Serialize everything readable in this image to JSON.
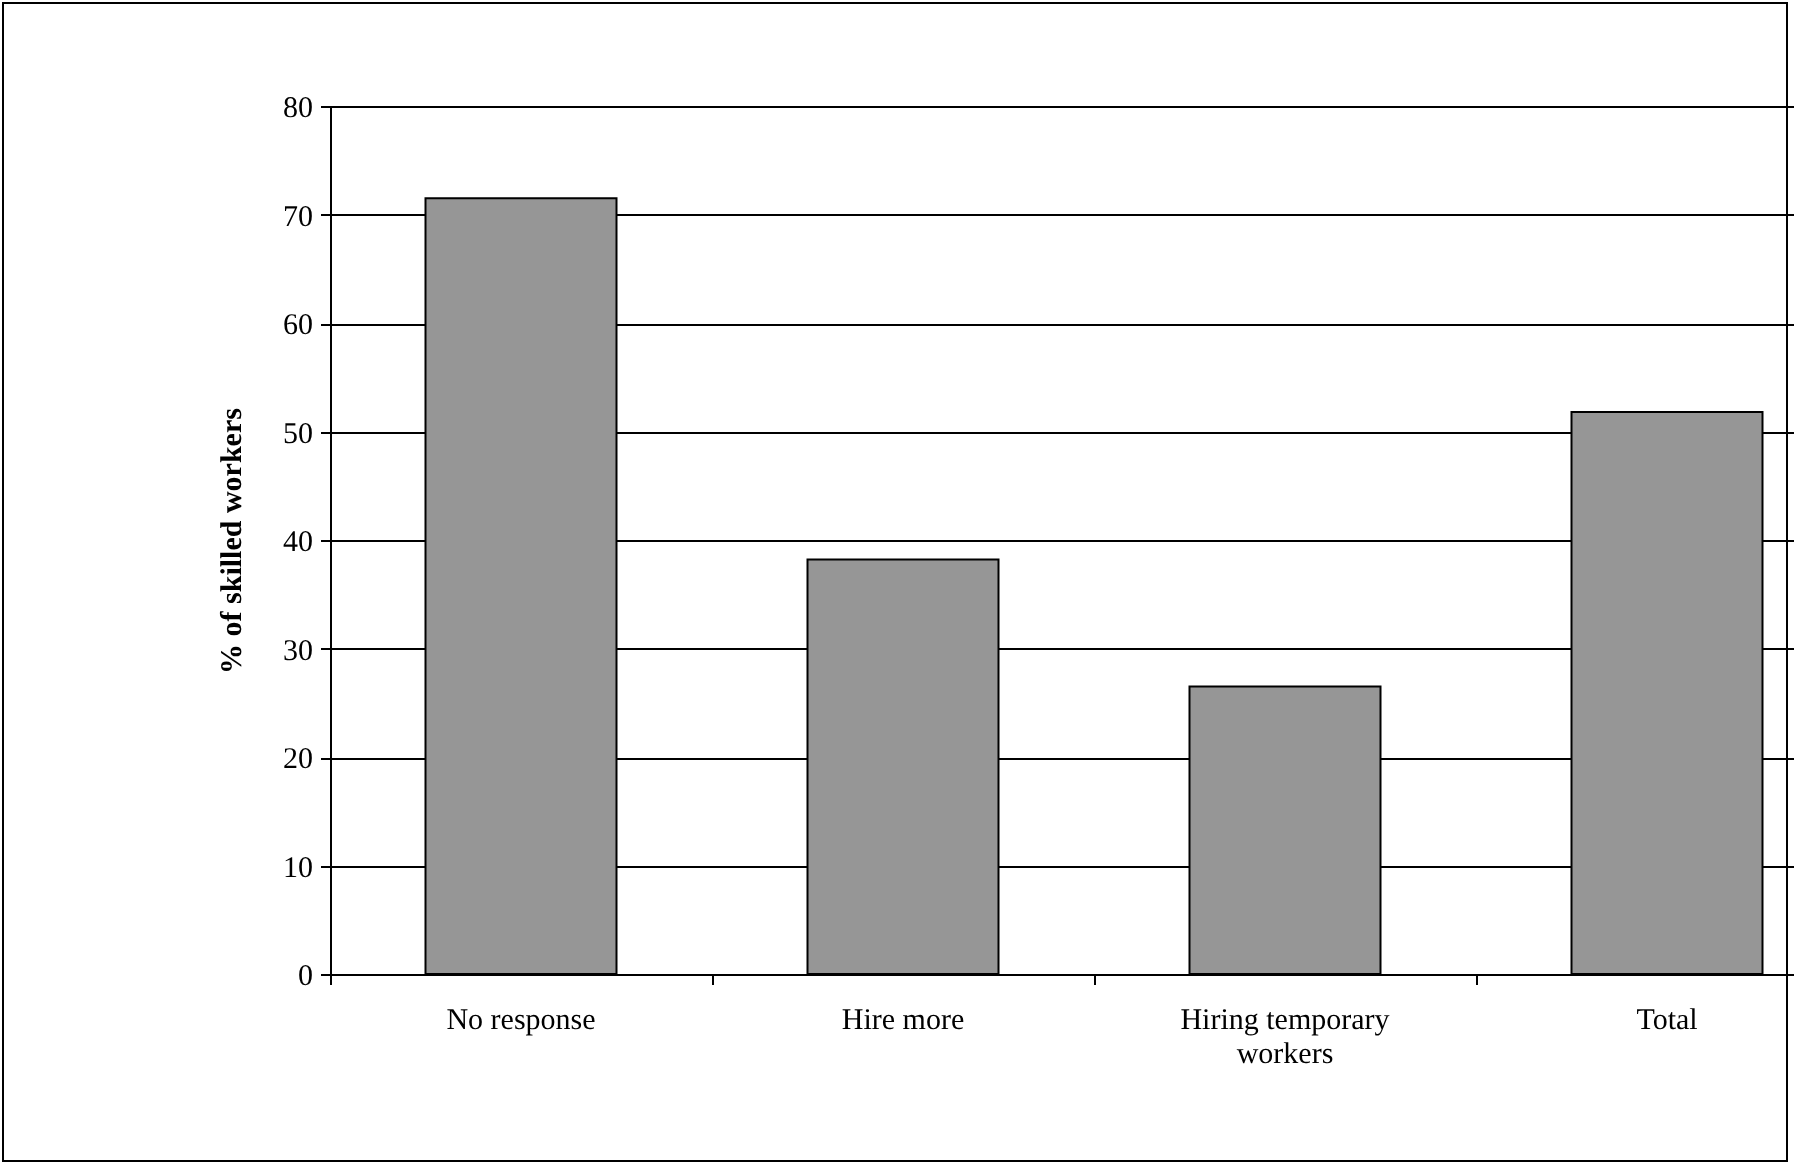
{
  "chart_data": {
    "type": "bar",
    "ylabel": "% of skilled workers",
    "categories": [
      "No response",
      "Hire more",
      "Hiring temporary workers",
      "Total"
    ],
    "values": [
      71.5,
      38.2,
      26.5,
      51.8
    ],
    "color": "#969696",
    "ylim": [
      0,
      80
    ],
    "yticks": [
      0,
      10,
      20,
      30,
      40,
      50,
      60,
      70,
      80
    ],
    "grid": "y"
  }
}
